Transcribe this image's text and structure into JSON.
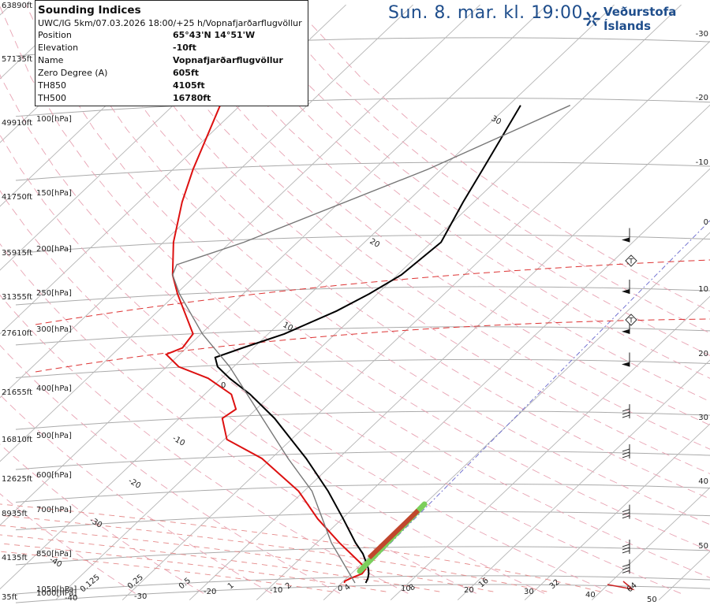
{
  "header": {
    "title": "Sun. 8. mar. kl. 19:00",
    "logo_text": "Veðurstofa Íslands",
    "logo_icon": "snowflake-icon",
    "brand_color": "#1f4e8c"
  },
  "indices": {
    "title": "Sounding Indices",
    "run": "UWC/IG 5km/07.03.2026 18:00/+25 h/Vopnafjarðarflugvöllur",
    "rows": [
      {
        "label": "Position",
        "value": "65°43'N 14°51'W"
      },
      {
        "label": "Elevation",
        "value": "-10ft"
      },
      {
        "label": "Name",
        "value": "Vopnafjarðarflugvöllur"
      },
      {
        "label": "Zero Degree (A)",
        "value": "605ft"
      },
      {
        "label": "TH850",
        "value": "4105ft"
      },
      {
        "label": "TH500",
        "value": "16780ft"
      }
    ]
  },
  "chart_data": {
    "type": "line",
    "subtype": "skew-T log-p",
    "pressure_levels": [
      {
        "p": 1050,
        "label": "1050[hPa]",
        "alt": ""
      },
      {
        "p": 1000,
        "label": "1000[hPa]",
        "alt": "35ft"
      },
      {
        "p": 850,
        "label": "850[hPa]",
        "alt": "4135ft"
      },
      {
        "p": 700,
        "label": "700[hPa]",
        "alt": "8935ft"
      },
      {
        "p": 600,
        "label": "600[hPa]",
        "alt": "12625ft"
      },
      {
        "p": 500,
        "label": "500[hPa]",
        "alt": "16810ft"
      },
      {
        "p": 400,
        "label": "400[hPa]",
        "alt": "21655ft"
      },
      {
        "p": 300,
        "label": "300[hPa]",
        "alt": "27610ft"
      },
      {
        "p": 250,
        "label": "250[hPa]",
        "alt": "31355ft"
      },
      {
        "p": 200,
        "label": "200[hPa]",
        "alt": "35915ft"
      },
      {
        "p": 150,
        "label": "150[hPa]",
        "alt": "41750ft"
      },
      {
        "p": 100,
        "label": "100[hPa]",
        "alt": "49910ft"
      },
      {
        "p": null,
        "label": "",
        "alt": "57135ft"
      },
      {
        "p": null,
        "label": "",
        "alt": "63890ft"
      }
    ],
    "bottom_labels": [
      "-40",
      "-30",
      "0.125",
      "-20",
      "0.25",
      "0.5",
      "-10",
      "1",
      "2",
      "0",
      "4",
      "10",
      "8",
      "20",
      "16",
      "30",
      "32",
      "40",
      "64",
      "50"
    ],
    "right_labels": [
      "-30",
      "-20",
      "-10",
      "0",
      "10",
      "20",
      "30",
      "40",
      "50"
    ],
    "isotherm_labels": [
      "30",
      "20",
      "10",
      "0",
      "-10",
      "-20",
      "-30",
      "-40"
    ],
    "series": [
      {
        "name": "temperature",
        "color": "#000000",
        "points": [
          [
            1000,
            3.6
          ],
          [
            975,
            3.2
          ],
          [
            950,
            2.6
          ],
          [
            925,
            1.8
          ],
          [
            900,
            0.8
          ],
          [
            850,
            -1.4
          ],
          [
            800,
            -4.2
          ],
          [
            700,
            -9.8
          ],
          [
            600,
            -16.4
          ],
          [
            500,
            -24.8
          ],
          [
            400,
            -35.8
          ],
          [
            350,
            -43.2
          ],
          [
            320,
            -48.8
          ],
          [
            300,
            -52.4
          ],
          [
            285,
            -54.2
          ],
          [
            270,
            -51.6
          ],
          [
            250,
            -47.6
          ],
          [
            220,
            -43.4
          ],
          [
            200,
            -41.2
          ],
          [
            180,
            -39.4
          ],
          [
            150,
            -38.6
          ],
          [
            120,
            -41.6
          ],
          [
            100,
            -43.8
          ],
          [
            85,
            -45.8
          ],
          [
            70,
            -48.2
          ]
        ]
      },
      {
        "name": "dewpoint",
        "color": "#dd1111",
        "points": [
          [
            1000,
            0.4
          ],
          [
            990,
            0.2
          ],
          [
            975,
            0.6
          ],
          [
            950,
            1.6
          ],
          [
            925,
            1.4
          ],
          [
            900,
            0.0
          ],
          [
            850,
            -3.2
          ],
          [
            800,
            -6.6
          ],
          [
            700,
            -13.6
          ],
          [
            600,
            -20.8
          ],
          [
            500,
            -31.4
          ],
          [
            450,
            -39.6
          ],
          [
            400,
            -43.6
          ],
          [
            380,
            -43.0
          ],
          [
            350,
            -46.0
          ],
          [
            320,
            -52.0
          ],
          [
            300,
            -58.2
          ],
          [
            280,
            -62.0
          ],
          [
            270,
            -60.6
          ],
          [
            250,
            -61.2
          ],
          [
            200,
            -69.8
          ],
          [
            180,
            -73.5
          ],
          [
            150,
            -78.5
          ],
          [
            120,
            -83.5
          ],
          [
            100,
            -87.0
          ],
          [
            70,
            -93.0
          ]
        ]
      },
      {
        "name": "parcel",
        "color": "#777777",
        "points": [
          [
            1000,
            2.0
          ],
          [
            800,
            -7.8
          ],
          [
            600,
            -18.8
          ],
          [
            500,
            -27.5
          ],
          [
            400,
            -37.6
          ],
          [
            300,
            -50.6
          ],
          [
            250,
            -59.8
          ],
          [
            200,
            -69.5
          ],
          [
            180,
            -73.5
          ],
          [
            170,
            -74.5
          ],
          [
            150,
            -68.0
          ],
          [
            100,
            -52.0
          ],
          [
            70,
            -40.8
          ]
        ]
      }
    ],
    "winds": [
      {
        "p": 950,
        "sym": "staff-barbs"
      },
      {
        "p": 850,
        "sym": "staff-barbs"
      },
      {
        "p": 700,
        "sym": "staff-barbs"
      },
      {
        "p": 500,
        "sym": "staff-barbs"
      },
      {
        "p": 400,
        "sym": "staff-barbs"
      },
      {
        "p": 300,
        "sym": "pennant"
      },
      {
        "p": 250,
        "sym": "pennant"
      },
      {
        "p": 200,
        "sym": "pennant"
      },
      {
        "p": 150,
        "sym": "pennant"
      }
    ],
    "tropopause_marks": [
      "T",
      "T"
    ],
    "colors": {
      "isobar": "#aaaaaa",
      "isotherm": "#b5b5b5",
      "dry_adiabat": "#e8a3b3",
      "moist_adiabat": "#e58a8a",
      "mixing_ratio": "#6666cc",
      "freezing_level": "#dd3333"
    }
  }
}
